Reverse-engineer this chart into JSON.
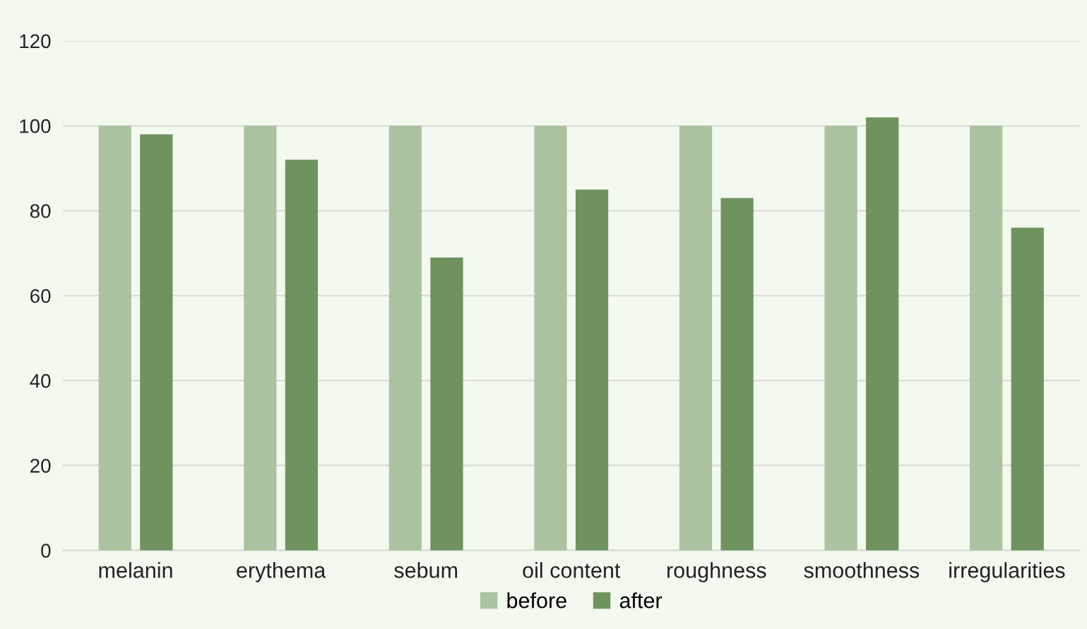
{
  "chart_data": {
    "type": "bar",
    "categories": [
      "melanin",
      "erythema",
      "sebum",
      "oil content",
      "roughness",
      "smoothness",
      "irregularities"
    ],
    "series": [
      {
        "name": "before",
        "color": "#abc3a0",
        "values": [
          100,
          100,
          100,
          100,
          100,
          100,
          100
        ]
      },
      {
        "name": "after",
        "color": "#6f935f",
        "values": [
          98,
          92,
          69,
          85,
          83,
          102,
          76
        ]
      }
    ],
    "ylim": [
      0,
      120
    ],
    "yticks": [
      0,
      20,
      40,
      60,
      80,
      100,
      120
    ],
    "grid": "y",
    "legend": "bottom"
  }
}
